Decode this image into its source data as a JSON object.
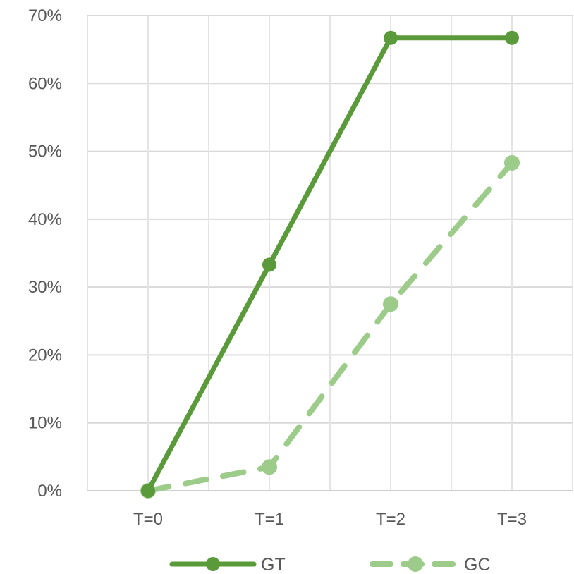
{
  "chart_data": {
    "type": "line",
    "title": "",
    "xlabel": "",
    "ylabel": "",
    "categories": [
      "T=0",
      "T=1",
      "T=2",
      "T=3"
    ],
    "ylim": [
      0,
      70
    ],
    "y_unit": "%",
    "y_ticks": [
      0,
      10,
      20,
      30,
      40,
      50,
      60,
      70
    ],
    "y_tick_labels": [
      "0%",
      "10%",
      "20%",
      "30%",
      "40%",
      "50%",
      "60%",
      "70%"
    ],
    "grid": true,
    "legend_position": "bottom",
    "series": [
      {
        "name": "GT",
        "values": [
          0,
          33.3,
          66.7,
          66.7
        ],
        "color": "#5a9a3a",
        "line_style": "solid",
        "marker": "circle"
      },
      {
        "name": "GC",
        "values": [
          0,
          3.5,
          27.5,
          48.3
        ],
        "color": "#9ccb8a",
        "line_style": "dashed",
        "marker": "circle"
      }
    ]
  }
}
